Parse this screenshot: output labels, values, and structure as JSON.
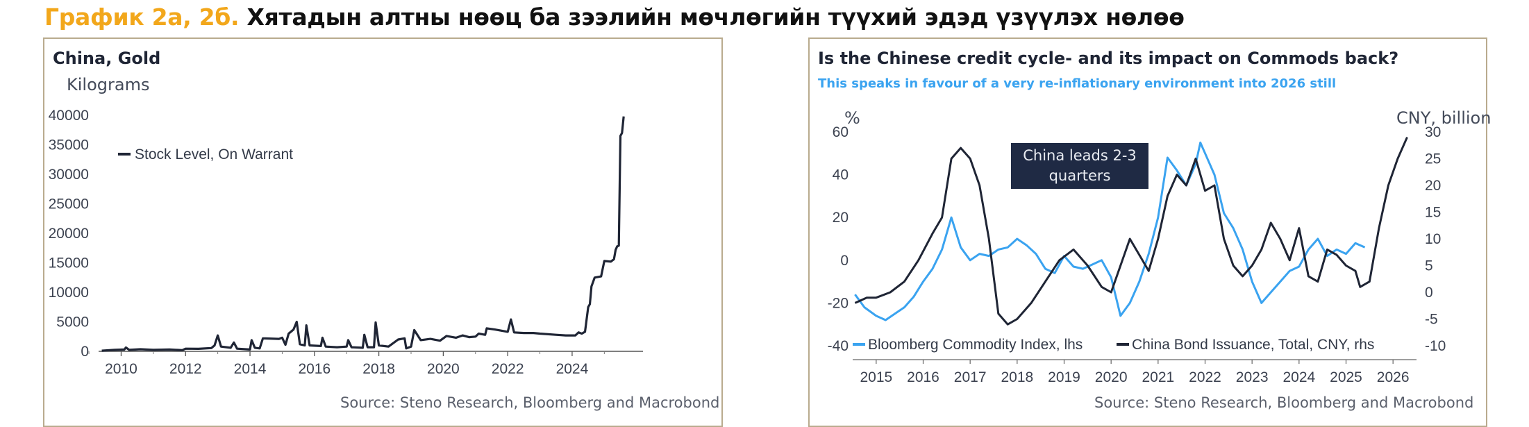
{
  "page_title": {
    "prefix": "График 2а, 2б.",
    "main": "Хятадын алтны нөөц ба зээлийн мөчлөгийн түүхий эдэд үзүүлэх нөлөө"
  },
  "colors": {
    "navy": "#1f2535",
    "blue": "#3aa3f0",
    "accent": "#f2a71b",
    "frame": "#b9ab8e"
  },
  "chart_data": [
    {
      "type": "line",
      "title": "China, Gold",
      "ylabel": "Kilograms",
      "xlim": [
        2009.3,
        2026.2
      ],
      "ylim": [
        0,
        40000
      ],
      "x_ticks": [
        "2010",
        "2012",
        "2014",
        "2016",
        "2018",
        "2020",
        "2022",
        "2024"
      ],
      "y_ticks": [
        "0",
        "5000",
        "10000",
        "15000",
        "20000",
        "25000",
        "30000",
        "35000",
        "40000"
      ],
      "legend": "top-left",
      "grid": false,
      "source": "Source: Steno Research, Bloomberg and Macrobond",
      "series": [
        {
          "name": "Stock Level, On Warrant",
          "color": "#1f2535",
          "points": [
            [
              2009.4,
              100
            ],
            [
              2009.8,
              250
            ],
            [
              2010.1,
              300
            ],
            [
              2010.15,
              650
            ],
            [
              2010.25,
              250
            ],
            [
              2010.6,
              350
            ],
            [
              2011.0,
              250
            ],
            [
              2011.5,
              300
            ],
            [
              2011.9,
              200
            ],
            [
              2012.0,
              450
            ],
            [
              2012.4,
              420
            ],
            [
              2012.8,
              550
            ],
            [
              2012.9,
              1000
            ],
            [
              2013.0,
              2700
            ],
            [
              2013.1,
              800
            ],
            [
              2013.4,
              600
            ],
            [
              2013.5,
              1500
            ],
            [
              2013.6,
              450
            ],
            [
              2014.0,
              300
            ],
            [
              2014.05,
              1900
            ],
            [
              2014.15,
              600
            ],
            [
              2014.3,
              500
            ],
            [
              2014.4,
              2200
            ],
            [
              2014.9,
              2100
            ],
            [
              2015.0,
              2300
            ],
            [
              2015.1,
              1100
            ],
            [
              2015.2,
              3000
            ],
            [
              2015.35,
              3700
            ],
            [
              2015.45,
              5000
            ],
            [
              2015.55,
              1200
            ],
            [
              2015.7,
              1000
            ],
            [
              2015.75,
              4400
            ],
            [
              2015.85,
              1000
            ],
            [
              2016.2,
              900
            ],
            [
              2016.25,
              2300
            ],
            [
              2016.35,
              800
            ],
            [
              2016.7,
              700
            ],
            [
              2017.0,
              800
            ],
            [
              2017.05,
              1900
            ],
            [
              2017.15,
              700
            ],
            [
              2017.5,
              600
            ],
            [
              2017.55,
              2800
            ],
            [
              2017.65,
              700
            ],
            [
              2017.85,
              700
            ],
            [
              2017.9,
              4900
            ],
            [
              2018.0,
              1000
            ],
            [
              2018.3,
              800
            ],
            [
              2018.6,
              2000
            ],
            [
              2018.8,
              2200
            ],
            [
              2018.85,
              500
            ],
            [
              2019.0,
              800
            ],
            [
              2019.1,
              3600
            ],
            [
              2019.3,
              1900
            ],
            [
              2019.6,
              2100
            ],
            [
              2019.9,
              1800
            ],
            [
              2020.1,
              2600
            ],
            [
              2020.4,
              2300
            ],
            [
              2020.6,
              2700
            ],
            [
              2020.8,
              2400
            ],
            [
              2021.0,
              2500
            ],
            [
              2021.1,
              3000
            ],
            [
              2021.3,
              2800
            ],
            [
              2021.35,
              3900
            ],
            [
              2021.6,
              3700
            ],
            [
              2021.9,
              3400
            ],
            [
              2022.0,
              3300
            ],
            [
              2022.1,
              5400
            ],
            [
              2022.2,
              3200
            ],
            [
              2022.5,
              3100
            ],
            [
              2022.8,
              3100
            ],
            [
              2023.0,
              3000
            ],
            [
              2023.5,
              2800
            ],
            [
              2023.8,
              2700
            ],
            [
              2024.1,
              2700
            ],
            [
              2024.2,
              3200
            ],
            [
              2024.3,
              3000
            ],
            [
              2024.4,
              3300
            ],
            [
              2024.5,
              7500
            ],
            [
              2024.55,
              8000
            ],
            [
              2024.6,
              11000
            ],
            [
              2024.7,
              12500
            ],
            [
              2024.8,
              12600
            ],
            [
              2024.9,
              12700
            ],
            [
              2025.0,
              15300
            ],
            [
              2025.2,
              15200
            ],
            [
              2025.3,
              15600
            ],
            [
              2025.35,
              17200
            ],
            [
              2025.4,
              17800
            ],
            [
              2025.45,
              17900
            ],
            [
              2025.5,
              36500
            ],
            [
              2025.55,
              37000
            ],
            [
              2025.6,
              39800
            ]
          ]
        }
      ]
    },
    {
      "type": "line",
      "title": "Is the Chinese credit cycle- and its impact on Commods back?",
      "subtitle": "This speaks in favour of a very re-inflationary environment into 2026 still",
      "ylabel": "%",
      "y2label": "CNY, billion",
      "xlim": [
        2014.5,
        2026.5
      ],
      "ylim": [
        -40,
        60
      ],
      "y2lim": [
        -10,
        30
      ],
      "x_ticks": [
        "2015",
        "2016",
        "2017",
        "2018",
        "2019",
        "2020",
        "2021",
        "2022",
        "2023",
        "2024",
        "2025",
        "2026"
      ],
      "y_ticks": [
        "-40",
        "-20",
        "0",
        "20",
        "40",
        "60"
      ],
      "y2_ticks": [
        "-10",
        "-5",
        "0",
        "5",
        "10",
        "15",
        "20",
        "25",
        "30"
      ],
      "annotation": "China leads 2-3 quarters",
      "legend": "bottom",
      "grid": false,
      "source": "Source: Steno Research, Bloomberg and Macrobond",
      "series": [
        {
          "name": "Bloomberg Commodity Index, lhs",
          "axis": "left",
          "color": "#3aa3f0",
          "points": [
            [
              2014.55,
              -16
            ],
            [
              2014.75,
              -22
            ],
            [
              2015.0,
              -26
            ],
            [
              2015.2,
              -28
            ],
            [
              2015.4,
              -25
            ],
            [
              2015.6,
              -22
            ],
            [
              2015.8,
              -17
            ],
            [
              2016.0,
              -10
            ],
            [
              2016.2,
              -4
            ],
            [
              2016.4,
              5
            ],
            [
              2016.6,
              20
            ],
            [
              2016.8,
              6
            ],
            [
              2017.0,
              0
            ],
            [
              2017.2,
              3
            ],
            [
              2017.4,
              2
            ],
            [
              2017.6,
              5
            ],
            [
              2017.8,
              6
            ],
            [
              2018.0,
              10
            ],
            [
              2018.2,
              7
            ],
            [
              2018.4,
              3
            ],
            [
              2018.6,
              -4
            ],
            [
              2018.8,
              -6
            ],
            [
              2019.0,
              2
            ],
            [
              2019.2,
              -3
            ],
            [
              2019.4,
              -4
            ],
            [
              2019.6,
              -2
            ],
            [
              2019.8,
              0
            ],
            [
              2020.0,
              -8
            ],
            [
              2020.2,
              -26
            ],
            [
              2020.4,
              -20
            ],
            [
              2020.6,
              -10
            ],
            [
              2020.8,
              3
            ],
            [
              2021.0,
              20
            ],
            [
              2021.2,
              48
            ],
            [
              2021.4,
              42
            ],
            [
              2021.6,
              35
            ],
            [
              2021.8,
              45
            ],
            [
              2021.9,
              55
            ],
            [
              2022.0,
              50
            ],
            [
              2022.2,
              40
            ],
            [
              2022.4,
              22
            ],
            [
              2022.6,
              15
            ],
            [
              2022.8,
              5
            ],
            [
              2023.0,
              -10
            ],
            [
              2023.2,
              -20
            ],
            [
              2023.4,
              -15
            ],
            [
              2023.6,
              -10
            ],
            [
              2023.8,
              -5
            ],
            [
              2024.0,
              -3
            ],
            [
              2024.2,
              5
            ],
            [
              2024.4,
              10
            ],
            [
              2024.6,
              2
            ],
            [
              2024.8,
              5
            ],
            [
              2025.0,
              3
            ],
            [
              2025.2,
              8
            ],
            [
              2025.4,
              6
            ]
          ]
        },
        {
          "name": "China Bond Issuance, Total, CNY, rhs",
          "axis": "right",
          "color": "#1f2535",
          "points": [
            [
              2014.55,
              -2
            ],
            [
              2014.8,
              -1
            ],
            [
              2015.0,
              -1
            ],
            [
              2015.3,
              0
            ],
            [
              2015.6,
              2
            ],
            [
              2015.9,
              6
            ],
            [
              2016.2,
              11
            ],
            [
              2016.4,
              14
            ],
            [
              2016.6,
              25
            ],
            [
              2016.8,
              27
            ],
            [
              2017.0,
              25
            ],
            [
              2017.2,
              20
            ],
            [
              2017.4,
              10
            ],
            [
              2017.6,
              -4
            ],
            [
              2017.8,
              -6
            ],
            [
              2018.0,
              -5
            ],
            [
              2018.3,
              -2
            ],
            [
              2018.6,
              2
            ],
            [
              2018.9,
              6
            ],
            [
              2019.2,
              8
            ],
            [
              2019.5,
              5
            ],
            [
              2019.8,
              1
            ],
            [
              2020.0,
              0
            ],
            [
              2020.2,
              5
            ],
            [
              2020.4,
              10
            ],
            [
              2020.6,
              7
            ],
            [
              2020.8,
              4
            ],
            [
              2021.0,
              10
            ],
            [
              2021.2,
              18
            ],
            [
              2021.4,
              22
            ],
            [
              2021.6,
              20
            ],
            [
              2021.8,
              25
            ],
            [
              2022.0,
              19
            ],
            [
              2022.2,
              20
            ],
            [
              2022.4,
              10
            ],
            [
              2022.6,
              5
            ],
            [
              2022.8,
              3
            ],
            [
              2023.0,
              5
            ],
            [
              2023.2,
              8
            ],
            [
              2023.4,
              13
            ],
            [
              2023.6,
              10
            ],
            [
              2023.8,
              6
            ],
            [
              2024.0,
              12
            ],
            [
              2024.2,
              3
            ],
            [
              2024.4,
              2
            ],
            [
              2024.6,
              8
            ],
            [
              2024.8,
              7
            ],
            [
              2025.0,
              5
            ],
            [
              2025.2,
              4
            ],
            [
              2025.3,
              1
            ],
            [
              2025.5,
              2
            ],
            [
              2025.7,
              12
            ],
            [
              2025.9,
              20
            ],
            [
              2026.1,
              25
            ],
            [
              2026.3,
              29
            ]
          ]
        }
      ]
    }
  ]
}
